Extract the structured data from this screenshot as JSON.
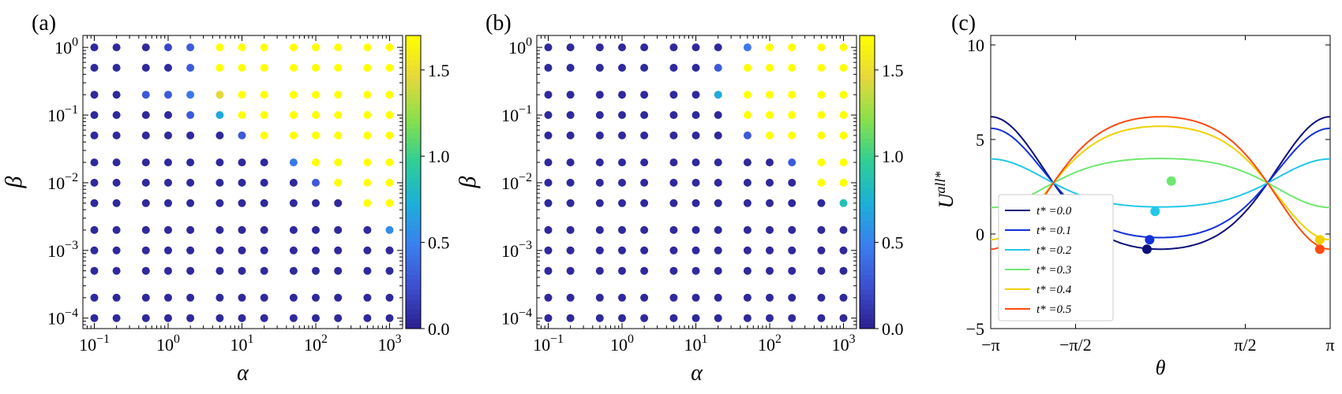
{
  "panels": {
    "a": {
      "label": "(a)"
    },
    "b": {
      "label": "(b)"
    },
    "c": {
      "label": "(c)"
    }
  },
  "colormap": {
    "name": "plasma-like",
    "stops": [
      "#2b1f8f",
      "#3d4ed0",
      "#3b7ff0",
      "#1bb0d8",
      "#2fcf95",
      "#8be04a",
      "#e6d83a",
      "#ffff00"
    ],
    "range": [
      0.0,
      1.7
    ],
    "ticks": [
      0.0,
      0.5,
      1.0,
      1.5
    ],
    "tick_labels": [
      "0.0",
      "0.5",
      "1.0",
      "1.5"
    ]
  },
  "chart_data": [
    {
      "id": "a",
      "type": "scatter",
      "title": "",
      "xlabel": "α",
      "ylabel": "β",
      "xscale": "log",
      "yscale": "log",
      "xlim": [
        0.07,
        1500
      ],
      "ylim": [
        7e-05,
        1.5
      ],
      "x_ticks": [
        0.1,
        1,
        10,
        100,
        1000
      ],
      "x_tick_labels": [
        "10^−1",
        "10^0",
        "10^1",
        "10^2",
        "10^3"
      ],
      "y_ticks": [
        0.0001,
        0.001,
        0.01,
        0.1,
        1
      ],
      "y_tick_labels": [
        "10^−4",
        "10^−3",
        "10^−2",
        "10^−1",
        "10^0"
      ],
      "alpha_grid": [
        0.1,
        0.2,
        0.5,
        1,
        2,
        5,
        10,
        20,
        50,
        100,
        200,
        500,
        1000
      ],
      "beta_grid": [
        1,
        0.5,
        0.2,
        0.1,
        0.05,
        0.02,
        0.01,
        0.005,
        0.002,
        0.001,
        0.0005,
        0.0002,
        0.0001
      ],
      "values": [
        [
          0.05,
          0.05,
          0.05,
          0.2,
          0.3,
          1.7,
          1.7,
          1.7,
          1.7,
          1.7,
          1.7,
          1.7,
          1.7
        ],
        [
          0.05,
          0.05,
          0.05,
          0.05,
          0.3,
          1.7,
          1.7,
          1.7,
          1.7,
          1.7,
          1.7,
          1.7,
          1.7
        ],
        [
          0.05,
          0.05,
          0.3,
          0.3,
          0.45,
          1.45,
          1.7,
          1.7,
          1.7,
          1.7,
          1.7,
          1.7,
          1.7
        ],
        [
          0.05,
          0.05,
          0.05,
          0.05,
          0.3,
          0.7,
          1.7,
          1.7,
          1.7,
          1.7,
          1.7,
          1.7,
          1.7
        ],
        [
          0.05,
          0.05,
          0.05,
          0.05,
          0.05,
          0.05,
          0.3,
          1.7,
          1.7,
          1.7,
          1.7,
          1.7,
          1.7
        ],
        [
          0.05,
          0.05,
          0.05,
          0.05,
          0.05,
          0.05,
          0.05,
          0.05,
          0.45,
          1.7,
          1.7,
          1.7,
          1.7
        ],
        [
          0.05,
          0.05,
          0.05,
          0.05,
          0.05,
          0.05,
          0.05,
          0.05,
          0.05,
          0.3,
          1.7,
          1.7,
          1.7
        ],
        [
          0.05,
          0.05,
          0.05,
          0.05,
          0.05,
          0.05,
          0.05,
          0.05,
          0.05,
          0.05,
          0.05,
          1.7,
          1.7
        ],
        [
          0.05,
          0.05,
          0.05,
          0.05,
          0.05,
          0.05,
          0.05,
          0.05,
          0.05,
          0.05,
          0.05,
          0.05,
          0.55
        ],
        [
          0.05,
          0.05,
          0.05,
          0.05,
          0.05,
          0.05,
          0.05,
          0.05,
          0.05,
          0.05,
          0.05,
          0.05,
          0.05
        ],
        [
          0.05,
          0.05,
          0.05,
          0.05,
          0.05,
          0.05,
          0.05,
          0.05,
          0.05,
          0.05,
          0.05,
          0.05,
          0.05
        ],
        [
          0.05,
          0.05,
          0.05,
          0.05,
          0.05,
          0.05,
          0.05,
          0.05,
          0.05,
          0.05,
          0.05,
          0.05,
          0.05
        ],
        [
          0.05,
          0.05,
          0.05,
          0.05,
          0.05,
          0.05,
          0.05,
          0.05,
          0.05,
          0.05,
          0.05,
          0.05,
          0.05
        ]
      ],
      "colorbar": true
    },
    {
      "id": "b",
      "type": "scatter",
      "title": "",
      "xlabel": "α",
      "ylabel": "β",
      "xscale": "log",
      "yscale": "log",
      "xlim": [
        0.07,
        1500
      ],
      "ylim": [
        7e-05,
        1.5
      ],
      "x_ticks": [
        0.1,
        1,
        10,
        100,
        1000
      ],
      "x_tick_labels": [
        "10^−1",
        "10^0",
        "10^1",
        "10^2",
        "10^3"
      ],
      "y_ticks": [
        0.0001,
        0.001,
        0.01,
        0.1,
        1
      ],
      "y_tick_labels": [
        "10^−4",
        "10^−3",
        "10^−2",
        "10^−1",
        "10^0"
      ],
      "alpha_grid": [
        0.1,
        0.2,
        0.5,
        1,
        2,
        5,
        10,
        20,
        50,
        100,
        200,
        500,
        1000
      ],
      "beta_grid": [
        1,
        0.5,
        0.2,
        0.1,
        0.05,
        0.02,
        0.01,
        0.005,
        0.002,
        0.001,
        0.0005,
        0.0002,
        0.0001
      ],
      "values": [
        [
          0.05,
          0.05,
          0.05,
          0.05,
          0.05,
          0.05,
          0.05,
          0.05,
          0.45,
          1.7,
          1.7,
          1.7,
          1.7
        ],
        [
          0.05,
          0.05,
          0.05,
          0.05,
          0.05,
          0.05,
          0.05,
          0.3,
          1.7,
          1.7,
          1.7,
          1.7,
          1.7
        ],
        [
          0.05,
          0.05,
          0.05,
          0.05,
          0.05,
          0.05,
          0.05,
          0.7,
          1.7,
          1.7,
          1.7,
          1.7,
          1.7
        ],
        [
          0.05,
          0.05,
          0.05,
          0.05,
          0.05,
          0.05,
          0.05,
          0.05,
          1.7,
          1.7,
          1.7,
          1.7,
          1.7
        ],
        [
          0.05,
          0.05,
          0.05,
          0.05,
          0.05,
          0.05,
          0.05,
          0.05,
          0.3,
          1.7,
          1.7,
          1.7,
          1.7
        ],
        [
          0.05,
          0.05,
          0.05,
          0.05,
          0.05,
          0.05,
          0.05,
          0.05,
          0.05,
          0.05,
          0.3,
          1.7,
          1.7
        ],
        [
          0.05,
          0.05,
          0.05,
          0.05,
          0.05,
          0.05,
          0.05,
          0.05,
          0.05,
          0.05,
          0.05,
          1.7,
          1.7
        ],
        [
          0.05,
          0.05,
          0.05,
          0.05,
          0.05,
          0.05,
          0.05,
          0.05,
          0.05,
          0.05,
          0.05,
          0.05,
          0.85
        ],
        [
          0.05,
          0.05,
          0.05,
          0.05,
          0.05,
          0.05,
          0.05,
          0.05,
          0.05,
          0.05,
          0.05,
          0.05,
          0.05
        ],
        [
          0.05,
          0.05,
          0.05,
          0.05,
          0.05,
          0.05,
          0.05,
          0.05,
          0.05,
          0.05,
          0.05,
          0.05,
          0.05
        ],
        [
          0.05,
          0.05,
          0.05,
          0.05,
          0.05,
          0.05,
          0.05,
          0.05,
          0.05,
          0.05,
          0.05,
          0.05,
          0.05
        ],
        [
          0.05,
          0.05,
          0.05,
          0.05,
          0.05,
          0.05,
          0.05,
          0.05,
          0.05,
          0.05,
          0.05,
          0.05,
          0.05
        ],
        [
          0.05,
          0.05,
          0.05,
          0.05,
          0.05,
          0.05,
          0.05,
          0.05,
          0.05,
          0.05,
          0.05,
          0.05,
          0.05
        ]
      ],
      "colorbar": true
    },
    {
      "id": "c",
      "type": "line",
      "title": "",
      "xlabel": "θ",
      "ylabel": "U^{all*}",
      "xlim": [
        -3.14159,
        3.14159
      ],
      "ylim": [
        -5,
        10.5
      ],
      "x_ticks": [
        -3.14159,
        -1.5708,
        1.5708,
        3.14159
      ],
      "x_tick_labels": [
        "−π",
        "−π/2",
        "π/2",
        "π"
      ],
      "y_ticks": [
        -5,
        0,
        5,
        10
      ],
      "y_tick_labels": [
        "−5",
        "0",
        "5",
        "10"
      ],
      "legend_position": "lower-left",
      "series": [
        {
          "name": "t* =0.0",
          "color": "#0a0f7a",
          "a": 3.5,
          "s": 0.0,
          "min": [
            -0.25,
            -0.8
          ]
        },
        {
          "name": "t* =0.1",
          "color": "#1430d8",
          "a": 3.5,
          "s": 0.6,
          "min": [
            -0.2,
            -0.3
          ]
        },
        {
          "name": "t* =0.2",
          "color": "#22c8e8",
          "a": 3.5,
          "s": 1.2,
          "min": [
            -0.1,
            1.2
          ]
        },
        {
          "name": "t* =0.3",
          "color": "#6ee86e",
          "a": 3.5,
          "s": 1.95,
          "min": [
            0.2,
            2.8
          ]
        },
        {
          "name": "t* =0.4",
          "color": "#f0d000",
          "a": 3.5,
          "s": 2.6,
          "min": [
            2.95,
            -0.3
          ]
        },
        {
          "name": "t* =0.5",
          "color": "#ff4a10",
          "a": 3.5,
          "s": 3.141,
          "min": [
            2.95,
            -0.8
          ]
        }
      ]
    }
  ]
}
